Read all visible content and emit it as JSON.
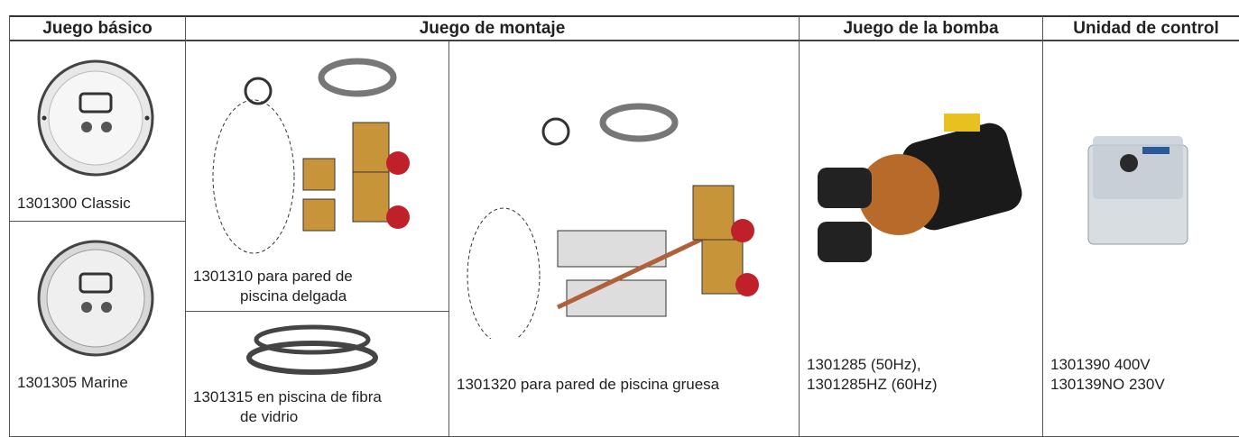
{
  "table": {
    "headers": [
      "Juego básico",
      "Juego de montaje",
      "Juego de la bomba",
      "Unidad de control"
    ],
    "basic": [
      {
        "caption": [
          "1301300 Classic"
        ]
      },
      {
        "caption": [
          "1301305 Marine"
        ]
      }
    ],
    "mounting": [
      {
        "caption": [
          "1301310 para pared de",
          "piscina delgada"
        ]
      },
      {
        "caption": [
          "1301315 en piscina de fibra",
          "de vidrio"
        ]
      },
      {
        "caption": [
          "1301320 para pared de piscina gruesa"
        ]
      }
    ],
    "pump": {
      "caption": [
        "1301285 (50Hz),",
        "1301285HZ (60Hz)"
      ]
    },
    "control": {
      "caption": [
        "1301390 400V",
        "130139NO 230V"
      ]
    }
  }
}
